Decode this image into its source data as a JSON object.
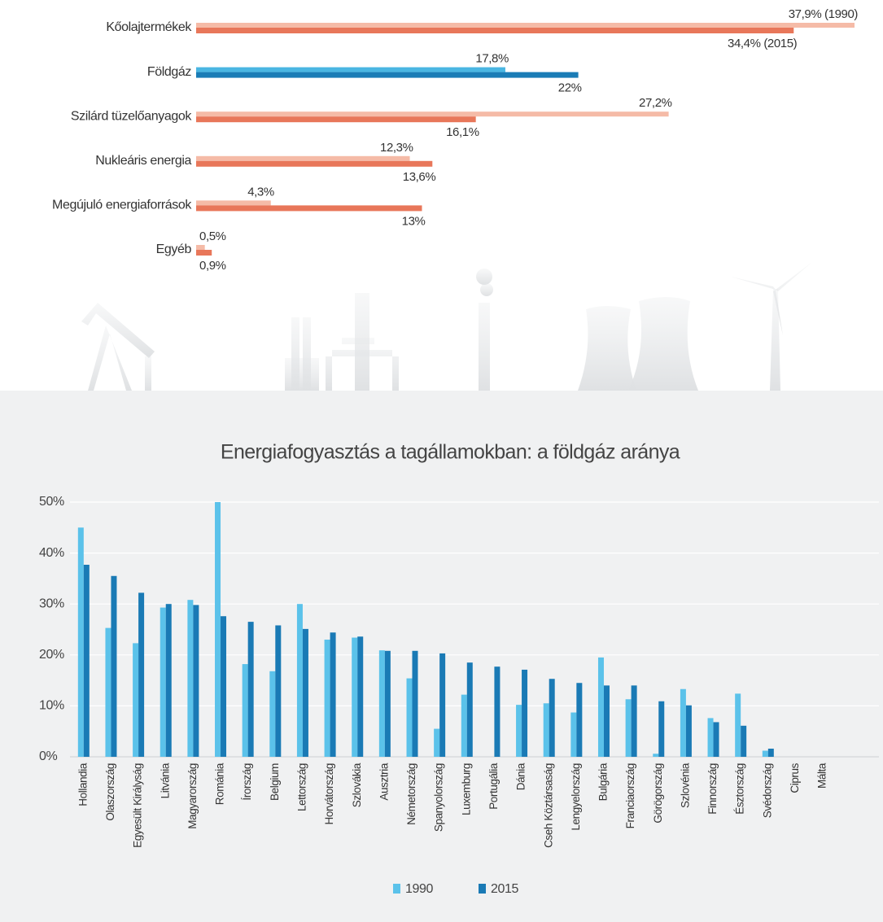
{
  "chart_data": [
    {
      "type": "hbar",
      "categories": [
        "Kőolajtermékek",
        "Földgáz",
        "Szilárd tüzelőanyagok",
        "Nukleáris energia",
        "Megújuló energiaforrások",
        "Egyéb"
      ],
      "series": [
        {
          "colors": [
            "#f5bba7",
            "#4ab6e2",
            "#f5bba7",
            "#f5bba7",
            "#f5bba7",
            "#f5bba7"
          ],
          "values": [
            37.9,
            17.8,
            27.2,
            12.3,
            4.3,
            0.5
          ],
          "value_labels": [
            "37,9% (1990)",
            "17,8%",
            "27,2%",
            "12,3%",
            "4,3%",
            "0,5%"
          ]
        },
        {
          "colors": [
            "#e8775a",
            "#1a7cb6",
            "#e8775a",
            "#e8775a",
            "#e8775a",
            "#e8775a"
          ],
          "values": [
            34.4,
            22,
            16.1,
            13.6,
            13,
            0.9
          ],
          "value_labels": [
            "34,4% (2015)",
            "22%",
            "16,1%",
            "13,6%",
            "13%",
            "0,9%"
          ]
        }
      ]
    },
    {
      "type": "bar",
      "title": "Energiafogyasztás a tagállamokban: a földgáz aránya",
      "categories": [
        "Hollandia",
        "Olaszország",
        "Egyesült Királyság",
        "Litvánia",
        "Magyarország",
        "Románia",
        "Írország",
        "Belgium",
        "Lettország",
        "Horvátország",
        "Szlovákia",
        "Ausztria",
        "Németország",
        "Spanyolország",
        "Luxemburg",
        "Portugália",
        "Dánia",
        "Cseh Köztársaság",
        "Lengyelország",
        "Bulgária",
        "Franciaország",
        "Görögország",
        "Szlovénia",
        "Finnország",
        "Észtország",
        "Svédország",
        "Ciprus",
        "Málta"
      ],
      "series": [
        {
          "name": "1990",
          "color": "#5bc2ea",
          "values": [
            45,
            25.3,
            22.3,
            29.3,
            30.8,
            50,
            18.2,
            16.8,
            30,
            23,
            23.4,
            20.9,
            15.4,
            5.5,
            12.2,
            0,
            10.2,
            10.5,
            8.7,
            19.5,
            11.3,
            0.6,
            13.3,
            7.6,
            12.4,
            1.2,
            0,
            0
          ]
        },
        {
          "name": "2015",
          "color": "#1a7ab5",
          "values": [
            37.7,
            35.5,
            32.2,
            30,
            29.8,
            27.6,
            26.5,
            25.8,
            25.1,
            24.4,
            23.6,
            20.8,
            20.8,
            20.3,
            18.5,
            17.7,
            17.1,
            15.3,
            14.5,
            14,
            14,
            10.9,
            10.1,
            6.8,
            6.1,
            1.6,
            0,
            0
          ]
        }
      ],
      "ylim": [
        0,
        50
      ],
      "yticks": [
        {
          "value": 0,
          "label": "0%"
        },
        {
          "value": 10,
          "label": "10%"
        },
        {
          "value": 20,
          "label": "20%"
        },
        {
          "value": 30,
          "label": "30%"
        },
        {
          "value": 40,
          "label": "40%"
        },
        {
          "value": 50,
          "label": "50%"
        }
      ],
      "grid": true
    }
  ]
}
